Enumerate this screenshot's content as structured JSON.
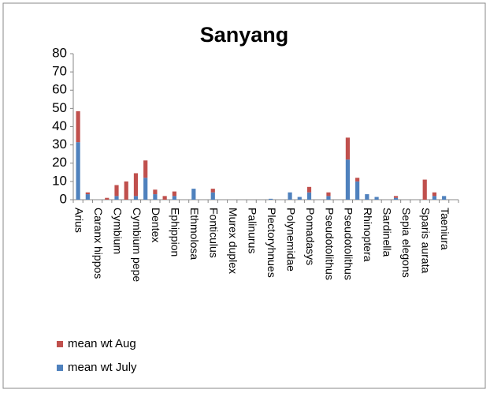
{
  "chart_data": {
    "type": "bar",
    "stacked": true,
    "title": "Sanyang",
    "categories": [
      "Arius",
      null,
      "Caranx hippos",
      null,
      "Cymbium",
      null,
      "Cymbium pepe",
      null,
      "Dentex",
      null,
      "Ephippion",
      null,
      "Ethmolosa",
      null,
      "Fonticulus",
      null,
      "Murex duplex",
      null,
      "Palinurus",
      null,
      "Plectoryhnues",
      null,
      "Polynemidae",
      null,
      "Pomadasys",
      null,
      "Pseudotolithus",
      null,
      "Pseudotolithus",
      null,
      "Rhinoptera",
      null,
      "Sardinella",
      null,
      "Sepia elegons",
      null,
      "Sparis aurata",
      null,
      "Taeniura",
      null
    ],
    "series": [
      {
        "name": "mean wt July",
        "color": "#4f81bd",
        "values": [
          31.5,
          3,
          0,
          0,
          2,
          0,
          2,
          12,
          3,
          0,
          2,
          0,
          6,
          0,
          4,
          0,
          0,
          0,
          0,
          0,
          0.5,
          0,
          4,
          1.5,
          4,
          0,
          2,
          0,
          22,
          10,
          3,
          1.5,
          0,
          1,
          0,
          0,
          0,
          2,
          2,
          0
        ]
      },
      {
        "name": "mean wt Aug",
        "color": "#c0504d",
        "values": [
          17,
          1,
          0,
          1,
          6,
          10,
          12.5,
          9.5,
          2.5,
          2,
          2.5,
          0,
          0,
          0,
          2,
          0,
          0,
          0,
          0,
          0,
          0,
          0,
          0,
          0,
          3,
          0,
          2,
          0,
          12,
          2,
          0,
          0,
          0,
          1,
          0,
          0,
          11,
          2,
          0,
          0
        ]
      }
    ],
    "ylim": [
      0,
      80
    ],
    "yticks": [
      0,
      10,
      20,
      30,
      40,
      50,
      60,
      70,
      80
    ],
    "grid": false,
    "legend": "bottom-left"
  }
}
